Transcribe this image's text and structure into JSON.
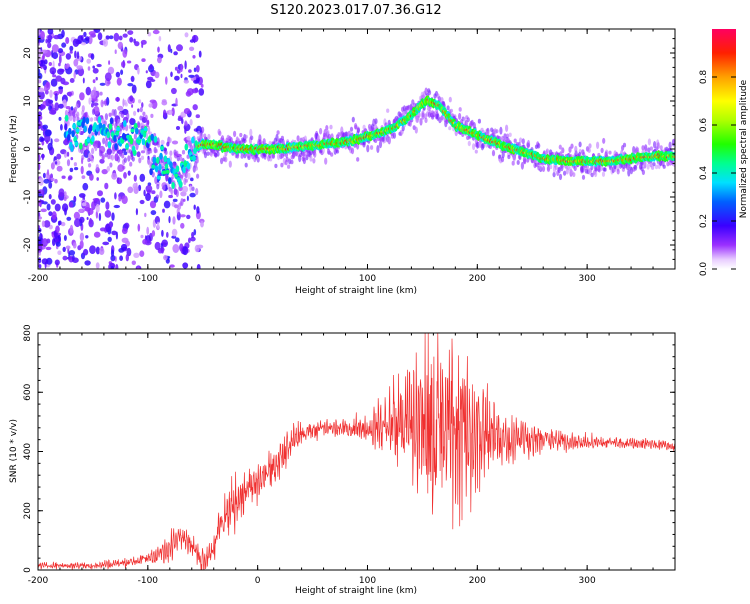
{
  "page_title": "S120.2023.017.07.36.G12",
  "chart_data": [
    {
      "type": "heatmap",
      "title": "S120.2023.017.07.36.G12",
      "xlabel": "Height of straight line (km)",
      "ylabel": "Frequency (Hz)",
      "xlim": [
        -200,
        380
      ],
      "ylim": [
        -25,
        25
      ],
      "x_ticks": [
        "-200",
        "-100",
        "0",
        "100",
        "200",
        "300"
      ],
      "y_ticks": [
        "-20",
        "-10",
        "0",
        "10",
        "20"
      ],
      "ridge": {
        "x": [
          -170,
          -150,
          -130,
          -110,
          -100,
          -90,
          -80,
          -70,
          -60,
          -50,
          -40,
          -20,
          0,
          20,
          40,
          60,
          80,
          100,
          120,
          140,
          150,
          155,
          165,
          180,
          200,
          220,
          240,
          260,
          280,
          300,
          320,
          340,
          360,
          380
        ],
        "y": [
          3,
          4,
          3,
          3,
          1,
          -3,
          -5,
          -5,
          0,
          1,
          1,
          0,
          0,
          0,
          0.5,
          1,
          1.5,
          2.5,
          4,
          7,
          9.5,
          10,
          9,
          5,
          3,
          1,
          -0.5,
          -2,
          -2.5,
          -2.5,
          -2.5,
          -2,
          -1.5,
          -1.5
        ]
      },
      "colorbar": {
        "label": "Normalized spectral amplitude",
        "ticks": [
          "0.0",
          "0.2",
          "0.4",
          "0.6",
          "0.8"
        ],
        "range": [
          0,
          1
        ]
      }
    },
    {
      "type": "line",
      "xlabel": "Height of straight line (km)",
      "ylabel": "SNR (10 * v/v)",
      "xlim": [
        -200,
        380
      ],
      "ylim": [
        0,
        800
      ],
      "x_ticks": [
        "-200",
        "-100",
        "0",
        "100",
        "200",
        "300"
      ],
      "y_ticks": [
        "0",
        "200",
        "400",
        "600",
        "800"
      ],
      "color": "#f03030",
      "envelope": {
        "x": [
          -200,
          -150,
          -120,
          -100,
          -80,
          -70,
          -60,
          -50,
          -40,
          -30,
          -20,
          -10,
          0,
          10,
          20,
          30,
          40,
          60,
          80,
          100,
          120,
          140,
          150,
          160,
          170,
          180,
          190,
          200,
          220,
          240,
          260,
          280,
          300,
          330,
          360,
          380
        ],
        "y": [
          15,
          15,
          25,
          40,
          70,
          130,
          80,
          30,
          80,
          180,
          230,
          270,
          290,
          330,
          370,
          420,
          460,
          480,
          480,
          480,
          490,
          500,
          495,
          490,
          485,
          480,
          475,
          465,
          450,
          445,
          440,
          435,
          430,
          430,
          425,
          415
        ]
      },
      "noise_amplitude": {
        "x": [
          -200,
          -100,
          -80,
          -60,
          -40,
          -20,
          0,
          20,
          40,
          80,
          100,
          120,
          140,
          160,
          180,
          200,
          220,
          260,
          300,
          380
        ],
        "y": [
          8,
          15,
          40,
          30,
          50,
          80,
          60,
          70,
          30,
          25,
          40,
          100,
          200,
          260,
          280,
          200,
          90,
          40,
          20,
          15
        ]
      }
    }
  ]
}
